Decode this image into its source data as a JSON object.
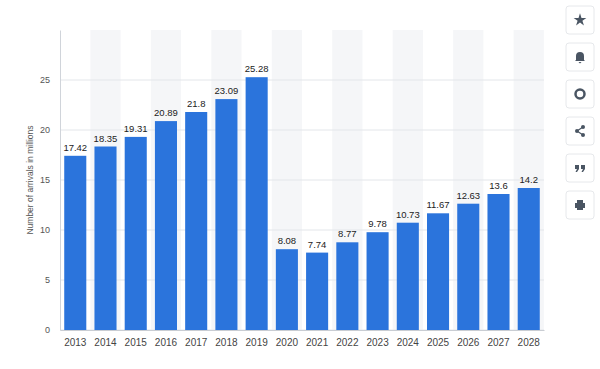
{
  "chart_data": {
    "type": "bar",
    "y_label": "Number of arrivals in millions",
    "categories": [
      "2013",
      "2014",
      "2015",
      "2016",
      "2017",
      "2018",
      "2019",
      "2020",
      "2021",
      "2022",
      "2023",
      "2024",
      "2025",
      "2026",
      "2027",
      "2028"
    ],
    "values": [
      17.42,
      18.35,
      19.31,
      20.89,
      21.8,
      23.09,
      25.28,
      8.08,
      7.74,
      8.77,
      9.78,
      10.73,
      11.67,
      12.63,
      13.6,
      14.2
    ],
    "color": "#2b74dc",
    "ylim": [
      0,
      30
    ],
    "yticks": [
      0,
      5,
      10,
      15,
      20,
      25
    ],
    "grid": true,
    "data_labels": true
  }
}
